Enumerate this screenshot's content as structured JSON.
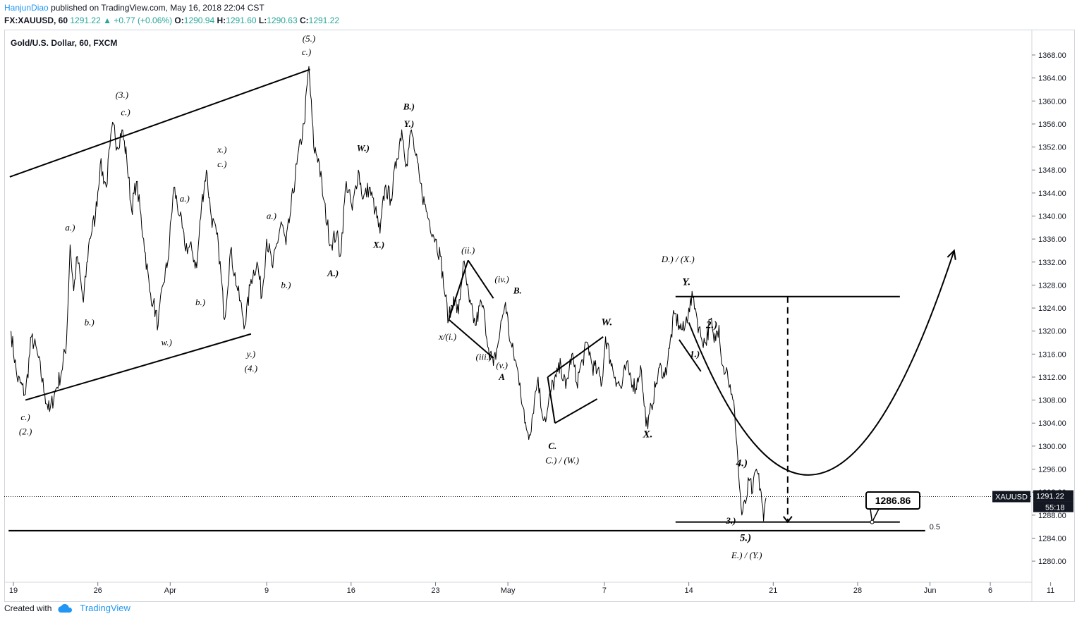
{
  "header": {
    "author": "HanjunDiao",
    "published_text": "published on TradingView.com, May 16, 2018 22:04 CST",
    "symbol_line": "FX:XAUUSD, 60",
    "last": "1291.22",
    "change_arrow": "▲",
    "change": "+0.77 (+0.06%)",
    "o_label": "O:",
    "o": "1290.94",
    "h_label": "H:",
    "h": "1291.60",
    "l_label": "L:",
    "l": "1290.63",
    "c_label": "C:",
    "c": "1291.22"
  },
  "footer": {
    "created_with": "Created with",
    "brand": "TradingView",
    "logo_icon": "tradingview-cloud-icon"
  },
  "colors": {
    "price_line": "#000000",
    "up": "#26a69a",
    "axis_text": "#131722",
    "grid_border": "#d1d4dc",
    "author": "#2196f3"
  },
  "chart_data": {
    "type": "line",
    "title": "Gold/U.S. Dollar, 60, FXCM",
    "ylim": [
      1277,
      1371
    ],
    "y_ticks": [
      "1368.00",
      "1364.00",
      "1360.00",
      "1356.00",
      "1352.00",
      "1348.00",
      "1344.00",
      "1340.00",
      "1336.00",
      "1332.00",
      "1328.00",
      "1324.00",
      "1320.00",
      "1316.00",
      "1312.00",
      "1308.00",
      "1304.00",
      "1300.00",
      "1296.00",
      "1292.00",
      "1288.00",
      "1284.00",
      "1280.00"
    ],
    "x_ticks": [
      {
        "label": "19",
        "day": 0
      },
      {
        "label": "26",
        "day": 7
      },
      {
        "label": "Apr",
        "day": 13
      },
      {
        "label": "9",
        "day": 21
      },
      {
        "label": "16",
        "day": 28
      },
      {
        "label": "23",
        "day": 35
      },
      {
        "label": "May",
        "day": 41
      },
      {
        "label": "7",
        "day": 49
      },
      {
        "label": "14",
        "day": 56
      },
      {
        "label": "21",
        "day": 63
      },
      {
        "label": "28",
        "day": 70
      },
      {
        "label": "Jun",
        "day": 76
      },
      {
        "label": "6",
        "day": 81
      },
      {
        "label": "11",
        "day": 86
      }
    ],
    "series": [
      {
        "points": [
          [
            -0.2,
            1320
          ],
          [
            0.3,
            1312
          ],
          [
            1.0,
            1309
          ],
          [
            1.5,
            1319
          ],
          [
            2.0,
            1316
          ],
          [
            2.6,
            1309
          ],
          [
            3.0,
            1306
          ],
          [
            3.4,
            1309
          ],
          [
            4.0,
            1313
          ],
          [
            4.4,
            1318
          ],
          [
            4.7,
            1335
          ],
          [
            5.0,
            1327
          ],
          [
            5.3,
            1333
          ],
          [
            5.8,
            1325
          ],
          [
            6.3,
            1336
          ],
          [
            6.8,
            1340
          ],
          [
            7.2,
            1349
          ],
          [
            7.7,
            1345
          ],
          [
            8.0,
            1352
          ],
          [
            8.3,
            1356
          ],
          [
            8.6,
            1352
          ],
          [
            9.0,
            1355
          ],
          [
            9.4,
            1350
          ],
          [
            9.8,
            1341
          ],
          [
            10.2,
            1346
          ],
          [
            10.8,
            1336
          ],
          [
            11.3,
            1327
          ],
          [
            11.6,
            1325
          ],
          [
            12.0,
            1321
          ],
          [
            12.4,
            1328
          ],
          [
            12.8,
            1332
          ],
          [
            13.3,
            1345
          ],
          [
            13.8,
            1340
          ],
          [
            14.2,
            1335
          ],
          [
            14.8,
            1334
          ],
          [
            15.2,
            1331
          ],
          [
            15.6,
            1342
          ],
          [
            16.0,
            1348
          ],
          [
            16.4,
            1340
          ],
          [
            17.0,
            1335
          ],
          [
            17.5,
            1322
          ],
          [
            18.0,
            1334
          ],
          [
            18.6,
            1327
          ],
          [
            19.2,
            1321
          ],
          [
            19.7,
            1329
          ],
          [
            20.2,
            1332
          ],
          [
            20.6,
            1326
          ],
          [
            21.0,
            1336
          ],
          [
            21.5,
            1331
          ],
          [
            22.2,
            1339
          ],
          [
            22.6,
            1335
          ],
          [
            23.0,
            1341
          ],
          [
            23.5,
            1349
          ],
          [
            24.1,
            1356
          ],
          [
            24.5,
            1366
          ],
          [
            24.9,
            1352
          ],
          [
            25.3,
            1350
          ],
          [
            25.7,
            1343
          ],
          [
            26.3,
            1335
          ],
          [
            26.8,
            1337
          ],
          [
            27.1,
            1333
          ],
          [
            27.6,
            1346
          ],
          [
            28.1,
            1341
          ],
          [
            28.6,
            1348
          ],
          [
            29.0,
            1343
          ],
          [
            29.5,
            1345
          ],
          [
            30.0,
            1341
          ],
          [
            30.4,
            1337
          ],
          [
            30.8,
            1345
          ],
          [
            31.3,
            1343
          ],
          [
            31.8,
            1350
          ],
          [
            32.2,
            1355
          ],
          [
            32.6,
            1349
          ],
          [
            33.0,
            1355
          ],
          [
            33.3,
            1351
          ],
          [
            33.7,
            1346
          ],
          [
            34.1,
            1342
          ],
          [
            34.5,
            1339
          ],
          [
            35.0,
            1336
          ],
          [
            35.4,
            1333
          ],
          [
            35.8,
            1326
          ],
          [
            36.1,
            1322
          ],
          [
            36.5,
            1326
          ],
          [
            36.9,
            1323
          ],
          [
            37.3,
            1332
          ],
          [
            37.8,
            1325
          ],
          [
            38.3,
            1321
          ],
          [
            38.8,
            1325
          ],
          [
            39.1,
            1322
          ],
          [
            39.4,
            1317
          ],
          [
            39.8,
            1314
          ],
          [
            40.2,
            1318
          ],
          [
            40.5,
            1322
          ],
          [
            40.8,
            1325
          ],
          [
            41.2,
            1318
          ],
          [
            41.6,
            1315
          ],
          [
            42.0,
            1311
          ],
          [
            42.4,
            1304
          ],
          [
            42.8,
            1302
          ],
          [
            43.2,
            1308
          ],
          [
            43.5,
            1312
          ],
          [
            43.8,
            1306
          ],
          [
            44.2,
            1305
          ],
          [
            44.6,
            1310
          ],
          [
            45.0,
            1312
          ],
          [
            45.4,
            1314
          ],
          [
            45.8,
            1310
          ],
          [
            46.3,
            1316
          ],
          [
            46.7,
            1311
          ],
          [
            47.2,
            1315
          ],
          [
            47.6,
            1318
          ],
          [
            48.0,
            1314
          ],
          [
            48.4,
            1313
          ],
          [
            48.8,
            1311
          ],
          [
            49.1,
            1319
          ],
          [
            49.5,
            1315
          ],
          [
            49.9,
            1312
          ],
          [
            50.4,
            1310
          ],
          [
            50.8,
            1314
          ],
          [
            51.2,
            1312
          ],
          [
            51.6,
            1310
          ],
          [
            52.0,
            1314
          ],
          [
            52.3,
            1307
          ],
          [
            52.6,
            1303
          ],
          [
            52.9,
            1307
          ],
          [
            53.3,
            1311
          ],
          [
            53.7,
            1314
          ],
          [
            54.0,
            1312
          ],
          [
            54.4,
            1317
          ],
          [
            54.8,
            1323
          ],
          [
            55.2,
            1321
          ],
          [
            55.6,
            1320
          ],
          [
            56.0,
            1324
          ],
          [
            56.4,
            1326
          ],
          [
            56.7,
            1322
          ],
          [
            57.0,
            1319
          ],
          [
            57.4,
            1318
          ],
          [
            57.8,
            1322
          ],
          [
            58.1,
            1318
          ],
          [
            58.5,
            1321
          ],
          [
            58.8,
            1314
          ],
          [
            59.2,
            1313
          ],
          [
            59.5,
            1309
          ],
          [
            59.8,
            1306
          ],
          [
            60.0,
            1300
          ],
          [
            60.2,
            1293
          ],
          [
            60.4,
            1288
          ],
          [
            60.7,
            1290
          ],
          [
            61.0,
            1294
          ],
          [
            61.3,
            1292
          ],
          [
            61.6,
            1296
          ],
          [
            62.0,
            1292
          ],
          [
            62.2,
            1287
          ],
          [
            62.4,
            1291
          ]
        ]
      }
    ],
    "last_price": 1291.22,
    "last_label": "1291.22",
    "countdown": "55:18",
    "symbol_tag": "XAUUSD",
    "target_box": "1286.86",
    "fib_label": "0.5",
    "wave_labels": [
      {
        "t": "(2.)",
        "d": 1.0,
        "p": 1302
      },
      {
        "t": "c.)",
        "d": 1.0,
        "p": 1304.5
      },
      {
        "t": "a.)",
        "d": 4.7,
        "p": 1337.5
      },
      {
        "t": "b.)",
        "d": 6.3,
        "p": 1321
      },
      {
        "t": "(3.)",
        "d": 9.0,
        "p": 1360.5
      },
      {
        "t": "c.)",
        "d": 9.3,
        "p": 1357.5
      },
      {
        "t": "w.)",
        "d": 12.7,
        "p": 1317.5
      },
      {
        "t": "a.)",
        "d": 14.2,
        "p": 1342.5
      },
      {
        "t": "b.)",
        "d": 15.5,
        "p": 1324.5
      },
      {
        "t": "x.)",
        "d": 17.3,
        "p": 1351
      },
      {
        "t": "c.)",
        "d": 17.3,
        "p": 1348.5
      },
      {
        "t": "y.)",
        "d": 19.7,
        "p": 1315.5
      },
      {
        "t": "(4.)",
        "d": 19.7,
        "p": 1313
      },
      {
        "t": "a.)",
        "d": 21.4,
        "p": 1339.5
      },
      {
        "t": "b.)",
        "d": 22.6,
        "p": 1327.5
      },
      {
        "t": "(5.)",
        "d": 24.5,
        "p": 1370.3
      },
      {
        "t": "c.)",
        "d": 24.3,
        "p": 1368
      },
      {
        "t": "A.)",
        "d": 26.5,
        "p": 1329.5
      },
      {
        "t": "W.)",
        "d": 29.0,
        "p": 1351.3
      },
      {
        "t": "X.)",
        "d": 30.3,
        "p": 1334.5
      },
      {
        "t": "B.)",
        "d": 32.8,
        "p": 1358.5
      },
      {
        "t": "Y.)",
        "d": 32.8,
        "p": 1355.5
      },
      {
        "t": "(ii.)",
        "d": 37.7,
        "p": 1333.5
      },
      {
        "t": "x/(i.)",
        "d": 36.0,
        "p": 1318.5
      },
      {
        "t": "(iv.)",
        "d": 40.5,
        "p": 1328.5
      },
      {
        "t": "B.",
        "d": 41.8,
        "p": 1326.5
      },
      {
        "t": "(iii.)",
        "d": 39.0,
        "p": 1315
      },
      {
        "t": "(v.)",
        "d": 40.5,
        "p": 1313.5
      },
      {
        "t": "A",
        "d": 40.5,
        "p": 1311.5
      },
      {
        "t": "C.",
        "d": 44.7,
        "p": 1299.5
      },
      {
        "t": "C.) / (W.)",
        "d": 45.5,
        "p": 1297
      },
      {
        "t": "W.",
        "d": 49.2,
        "p": 1321
      },
      {
        "t": "X.",
        "d": 52.6,
        "p": 1301.5
      },
      {
        "t": "D.) / (X.)",
        "d": 55.1,
        "p": 1332
      },
      {
        "t": "Y.",
        "d": 55.8,
        "p": 1328
      },
      {
        "t": "2.)",
        "d": 57.9,
        "p": 1320.5
      },
      {
        "t": "1.)",
        "d": 56.5,
        "p": 1315.5
      },
      {
        "t": "4.)",
        "d": 60.4,
        "p": 1296.5
      },
      {
        "t": "3.)",
        "d": 59.5,
        "p": 1286.5
      },
      {
        "t": "5.)",
        "d": 60.7,
        "p": 1283.5
      },
      {
        "t": "E.) / (Y.)",
        "d": 60.8,
        "p": 1280.5
      }
    ],
    "channel_lines": [
      [
        [
          -0.3,
          1346.8
        ],
        [
          24.6,
          1365.5
        ]
      ],
      [
        [
          1.0,
          1308
        ],
        [
          19.7,
          1319.5
        ]
      ],
      [
        [
          36.1,
          1322
        ],
        [
          37.7,
          1332.3
        ]
      ],
      [
        [
          37.7,
          1332.3
        ],
        [
          39.8,
          1325.7
        ]
      ],
      [
        [
          36.1,
          1322
        ],
        [
          39.8,
          1315.3
        ]
      ],
      [
        [
          44.3,
          1312
        ],
        [
          48.9,
          1319
        ]
      ],
      [
        [
          44.3,
          1312
        ],
        [
          44.9,
          1304
        ]
      ],
      [
        [
          44.9,
          1304
        ],
        [
          48.4,
          1308.2
        ]
      ],
      [
        [
          55.2,
          1318.5
        ],
        [
          57.0,
          1313
        ]
      ]
    ],
    "hlines": [
      {
        "x1": 54.9,
        "x2": 73.5,
        "p": 1326
      },
      {
        "x1": 54.9,
        "x2": 73.5,
        "p": 1286.8
      },
      {
        "x1": -0.4,
        "x2": 75.6,
        "p": 1285.3
      }
    ],
    "projection_arrow": {
      "d": 64.2,
      "from": 1326,
      "to": 1286.8
    },
    "bowl_curve": [
      [
        56.0,
        1321.5
      ],
      [
        63.8,
        1280
      ],
      [
        71.0,
        1289.5
      ],
      [
        78.0,
        1334
      ]
    ]
  }
}
